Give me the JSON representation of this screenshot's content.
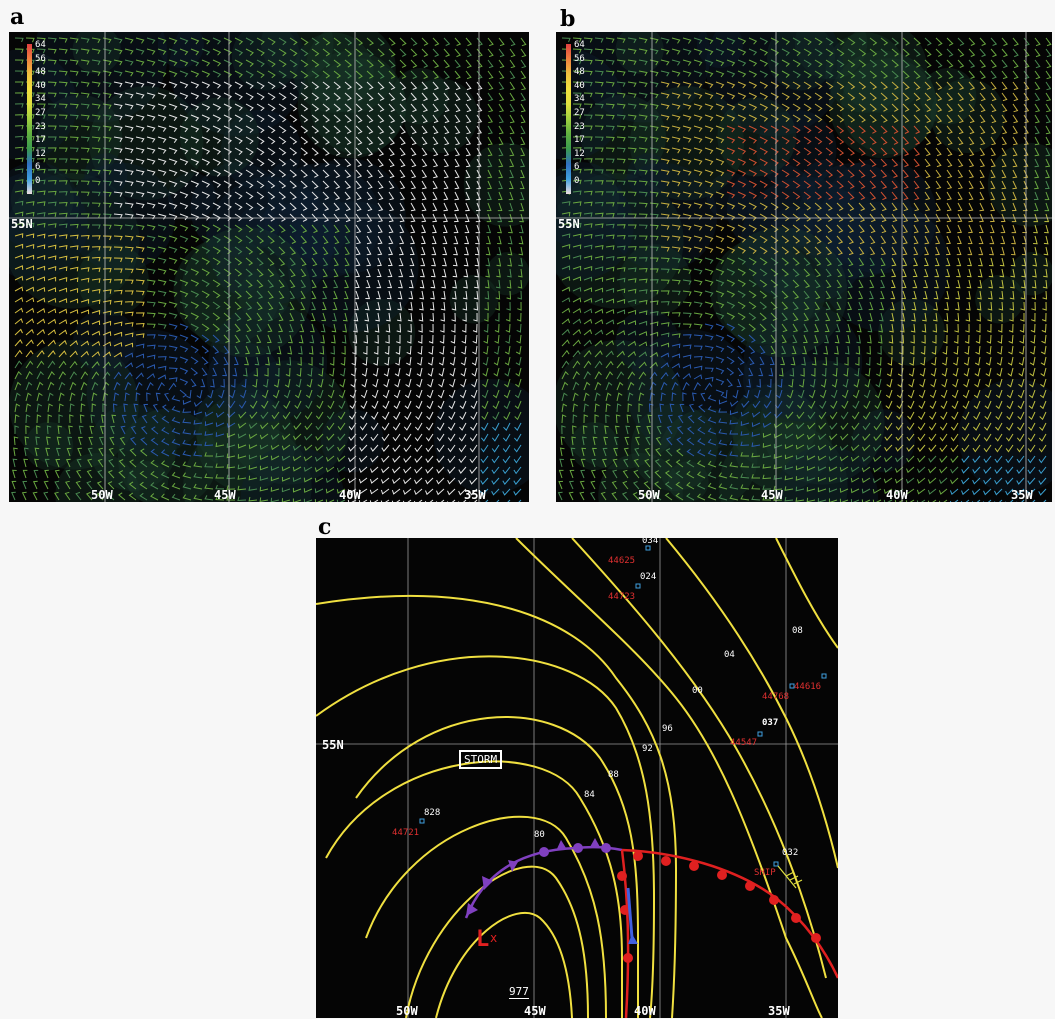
{
  "panels": {
    "a": {
      "letter": "a"
    },
    "b": {
      "letter": "b"
    },
    "c": {
      "letter": "c"
    }
  },
  "legend": {
    "values": [
      "64",
      "56",
      "48",
      "40",
      "34",
      "27",
      "23",
      "17",
      "12",
      "6",
      "0"
    ],
    "colors": [
      "#e04040",
      "#f08040",
      "#f0c040",
      "#f0e040",
      "#e0e040",
      "#a0d040",
      "#60b040",
      "#3a9a50",
      "#3070c0",
      "#40a0e0",
      "#f0e0e0"
    ]
  },
  "axes": {
    "lat_label": "55N",
    "lon_labels": [
      "50W",
      "45W",
      "40W",
      "35W"
    ]
  },
  "panel_c": {
    "storm_label": "STORM",
    "low_symbol": "L",
    "low_marker": "x",
    "central_pressure": "977",
    "contour_labels": [
      "80",
      "84",
      "88",
      "92",
      "96",
      "00",
      "04",
      "08",
      "024",
      "034",
      "037",
      "032",
      "828"
    ],
    "stations": [
      "44625",
      "44723",
      "44768",
      "44616",
      "44547",
      "44721",
      "SHIP"
    ],
    "colors": {
      "isobar": "#f0e040",
      "warm_front": "#e02020",
      "occluded_front": "#8040c0",
      "cold_front": "#4060e0"
    }
  }
}
